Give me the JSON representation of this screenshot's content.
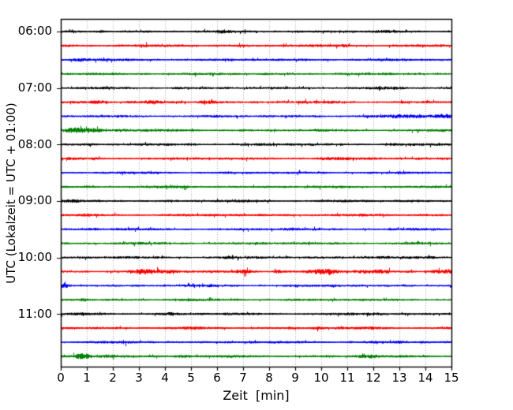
{
  "chart_data": {
    "type": "line",
    "subtype": "seismogram-dayplot",
    "title": "",
    "xlabel": "Zeit  [min]",
    "ylabel": "UTC (Lokalzeit = UTC + 01:00)",
    "xlim": [
      0,
      15
    ],
    "minutes_per_trace": 15,
    "x_tick_labels": [
      "0",
      "1",
      "2",
      "3",
      "4",
      "5",
      "6",
      "7",
      "8",
      "9",
      "10",
      "11",
      "12",
      "13",
      "14",
      "15"
    ],
    "y_tick_labels": [
      "06:00",
      "07:00",
      "08:00",
      "09:00",
      "10:00",
      "11:00"
    ],
    "grid": {
      "vertical": "dotted",
      "horizontal": "off",
      "color": "#909090"
    },
    "legend": "none",
    "colors": {
      "black": "#000000",
      "red": "#ff0000",
      "blue": "#0000ff",
      "green": "#008000"
    },
    "rows": [
      {
        "time": "06:00",
        "color": "black",
        "amp": 1.4,
        "events": [
          [
            1.5,
            0.4,
            0.3
          ],
          [
            6.2,
            0.3,
            0.25
          ],
          [
            9.0,
            0.35,
            0.25
          ],
          [
            12.4,
            0.5,
            0.55
          ]
        ]
      },
      {
        "time": "06:15",
        "color": "red",
        "amp": 1.5,
        "events": [
          [
            2.0,
            0.3,
            0.2
          ],
          [
            4.5,
            0.3,
            0.25
          ],
          [
            11.0,
            0.3,
            0.45
          ]
        ]
      },
      {
        "time": "06:30",
        "color": "blue",
        "amp": 1.4,
        "events": [
          [
            0.55,
            0.35,
            0.85
          ],
          [
            1.15,
            0.3,
            0.45
          ],
          [
            6.0,
            0.3,
            0.2
          ]
        ]
      },
      {
        "time": "06:45",
        "color": "green",
        "amp": 1.4,
        "events": [
          [
            3.3,
            0.2,
            0.5
          ],
          [
            8.0,
            0.4,
            0.2
          ],
          [
            13.9,
            0.3,
            0.35
          ]
        ]
      },
      {
        "time": "07:00",
        "color": "black",
        "amp": 1.4,
        "events": [
          [
            4.6,
            0.3,
            0.3
          ],
          [
            9.5,
            0.3,
            0.25
          ],
          [
            12.6,
            0.5,
            0.4
          ]
        ]
      },
      {
        "time": "07:15",
        "color": "red",
        "amp": 1.5,
        "events": [
          [
            0.6,
            0.4,
            0.45
          ],
          [
            1.35,
            0.3,
            2.1
          ],
          [
            3.5,
            0.4,
            0.35
          ],
          [
            5.7,
            0.35,
            1.0
          ],
          [
            10.5,
            0.3,
            0.25
          ]
        ]
      },
      {
        "time": "07:30",
        "color": "blue",
        "amp": 1.4,
        "events": [
          [
            9.5,
            0.4,
            0.25
          ],
          [
            13.2,
            0.7,
            0.55
          ],
          [
            14.9,
            1.1,
            1.8
          ]
        ]
      },
      {
        "time": "07:45",
        "color": "green",
        "amp": 1.4,
        "events": [
          [
            0.9,
            0.7,
            2.2
          ],
          [
            2.1,
            0.6,
            0.7
          ],
          [
            5.0,
            0.4,
            0.25
          ]
        ]
      },
      {
        "time": "08:00",
        "color": "black",
        "amp": 1.4,
        "events": [
          [
            1.0,
            0.3,
            0.25
          ],
          [
            5.1,
            0.3,
            0.55
          ],
          [
            9.3,
            0.35,
            0.4
          ],
          [
            12.7,
            0.5,
            0.5
          ]
        ]
      },
      {
        "time": "08:15",
        "color": "red",
        "amp": 1.5,
        "events": [
          [
            3.0,
            0.3,
            0.2
          ],
          [
            10.3,
            0.4,
            0.45
          ],
          [
            13.5,
            0.4,
            0.3
          ]
        ]
      },
      {
        "time": "08:30",
        "color": "blue",
        "amp": 1.4,
        "events": [
          [
            4.0,
            0.35,
            0.35
          ],
          [
            7.5,
            0.3,
            0.2
          ],
          [
            11.5,
            0.4,
            0.25
          ]
        ]
      },
      {
        "time": "08:45",
        "color": "green",
        "amp": 1.4,
        "events": [
          [
            1.0,
            0.15,
            0.5
          ],
          [
            4.6,
            0.2,
            0.55
          ],
          [
            12.9,
            0.25,
            0.35
          ]
        ]
      },
      {
        "time": "09:00",
        "color": "black",
        "amp": 1.4,
        "events": [
          [
            0.4,
            0.4,
            0.45
          ],
          [
            7.0,
            0.3,
            0.25
          ],
          [
            13.2,
            0.4,
            0.35
          ]
        ]
      },
      {
        "time": "09:15",
        "color": "red",
        "amp": 1.5,
        "events": [
          [
            6.5,
            0.3,
            0.2
          ],
          [
            10.0,
            0.3,
            0.2
          ],
          [
            13.9,
            0.15,
            0.55
          ]
        ]
      },
      {
        "time": "09:30",
        "color": "blue",
        "amp": 1.4,
        "events": [
          [
            1.3,
            0.4,
            0.4
          ],
          [
            2.4,
            0.3,
            0.25
          ],
          [
            8.9,
            0.5,
            0.5
          ]
        ]
      },
      {
        "time": "09:45",
        "color": "green",
        "amp": 1.4,
        "events": [
          [
            7.5,
            0.35,
            0.25
          ],
          [
            11.0,
            0.4,
            0.25
          ],
          [
            14.0,
            0.3,
            0.25
          ]
        ]
      },
      {
        "time": "10:00",
        "color": "black",
        "amp": 1.4,
        "events": [
          [
            2.5,
            0.3,
            0.25
          ],
          [
            6.4,
            0.3,
            0.45
          ],
          [
            9.8,
            0.3,
            0.25
          ],
          [
            12.0,
            0.5,
            0.5
          ]
        ]
      },
      {
        "time": "10:15",
        "color": "red",
        "amp": 1.5,
        "events": [
          [
            3.3,
            0.5,
            1.4
          ],
          [
            4.2,
            0.3,
            0.9
          ],
          [
            7.1,
            0.25,
            1.8
          ],
          [
            8.3,
            0.2,
            1.4
          ],
          [
            10.1,
            0.45,
            1.3
          ],
          [
            11.8,
            0.5,
            1.3
          ],
          [
            12.4,
            0.3,
            0.9
          ],
          [
            14.7,
            0.45,
            1.4
          ]
        ]
      },
      {
        "time": "10:30",
        "color": "blue",
        "amp": 1.4,
        "events": [
          [
            0.12,
            0.22,
            1.5
          ],
          [
            5.0,
            0.3,
            0.25
          ],
          [
            10.5,
            0.3,
            0.2
          ]
        ]
      },
      {
        "time": "10:45",
        "color": "green",
        "amp": 1.4,
        "events": [
          [
            0.8,
            0.2,
            0.95
          ],
          [
            4.4,
            0.2,
            0.75
          ],
          [
            9.0,
            0.3,
            0.2
          ]
        ]
      },
      {
        "time": "11:00",
        "color": "black",
        "amp": 1.4,
        "events": [
          [
            1.5,
            0.3,
            0.25
          ],
          [
            4.15,
            0.25,
            1.0
          ],
          [
            6.6,
            0.3,
            0.35
          ],
          [
            11.9,
            0.45,
            0.45
          ]
        ]
      },
      {
        "time": "11:15",
        "color": "red",
        "amp": 1.5,
        "events": [
          [
            5.0,
            0.3,
            0.2
          ],
          [
            9.8,
            0.3,
            0.3
          ],
          [
            12.1,
            0.3,
            0.35
          ]
        ]
      },
      {
        "time": "11:30",
        "color": "blue",
        "amp": 1.4,
        "events": [
          [
            2.5,
            0.3,
            0.2
          ],
          [
            7.0,
            0.4,
            0.25
          ],
          [
            13.0,
            0.3,
            0.25
          ]
        ]
      },
      {
        "time": "11:45",
        "color": "green",
        "amp": 1.4,
        "events": [
          [
            0.85,
            0.35,
            1.6
          ],
          [
            1.9,
            0.45,
            0.85
          ],
          [
            4.7,
            0.55,
            1.1
          ],
          [
            7.0,
            0.3,
            0.25
          ],
          [
            11.8,
            0.4,
            1.1
          ]
        ]
      }
    ]
  }
}
